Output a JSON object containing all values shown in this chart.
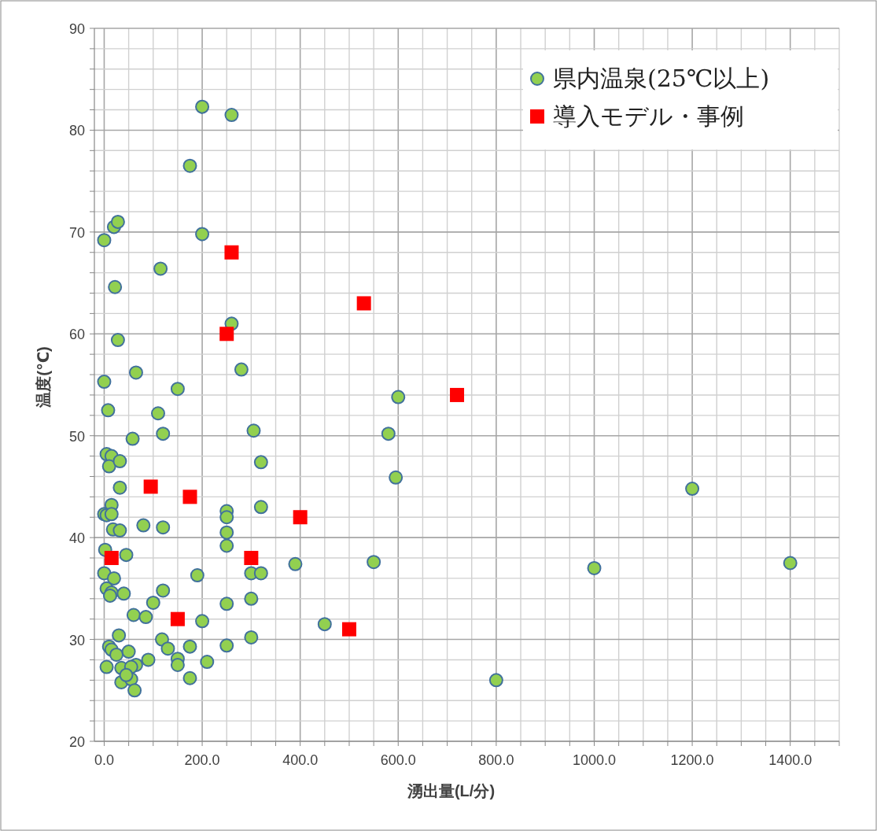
{
  "chart_data": {
    "type": "scatter",
    "xlabel": "湧出量(L/分)",
    "ylabel": "温度(℃)",
    "xlim": [
      -20,
      1500
    ],
    "xticks": [
      {
        "value": 0,
        "label": "0.0"
      },
      {
        "value": 50,
        "label": null
      },
      {
        "value": 100,
        "label": null
      },
      {
        "value": 150,
        "label": null
      },
      {
        "value": 200,
        "label": "200.0"
      },
      {
        "value": 250,
        "label": null
      },
      {
        "value": 300,
        "label": null
      },
      {
        "value": 350,
        "label": null
      },
      {
        "value": 400,
        "label": "400.0"
      },
      {
        "value": 450,
        "label": null
      },
      {
        "value": 500,
        "label": null
      },
      {
        "value": 550,
        "label": null
      },
      {
        "value": 600,
        "label": "600.0"
      },
      {
        "value": 650,
        "label": null
      },
      {
        "value": 700,
        "label": null
      },
      {
        "value": 750,
        "label": null
      },
      {
        "value": 800,
        "label": "800.0"
      },
      {
        "value": 850,
        "label": null
      },
      {
        "value": 900,
        "label": null
      },
      {
        "value": 950,
        "label": null
      },
      {
        "value": 1000,
        "label": "1000.0"
      },
      {
        "value": 1050,
        "label": null
      },
      {
        "value": 1100,
        "label": null
      },
      {
        "value": 1150,
        "label": null
      },
      {
        "value": 1200,
        "label": "1200.0"
      },
      {
        "value": 1250,
        "label": null
      },
      {
        "value": 1300,
        "label": null
      },
      {
        "value": 1350,
        "label": null
      },
      {
        "value": 1400,
        "label": "1400.0"
      },
      {
        "value": 1450,
        "label": null
      },
      {
        "value": 1500,
        "label": null
      }
    ],
    "ylim": [
      20,
      90
    ],
    "yticks": [
      20,
      {
        "value": 22,
        "label": null
      },
      {
        "value": 24,
        "label": null
      },
      {
        "value": 26,
        "label": null
      },
      {
        "value": 28,
        "label": null
      },
      30,
      {
        "value": 32,
        "label": null
      },
      {
        "value": 34,
        "label": null
      },
      {
        "value": 36,
        "label": null
      },
      {
        "value": 38,
        "label": null
      },
      40,
      {
        "value": 42,
        "label": null
      },
      {
        "value": 44,
        "label": null
      },
      {
        "value": 46,
        "label": null
      },
      {
        "value": 48,
        "label": null
      },
      50,
      {
        "value": 52,
        "label": null
      },
      {
        "value": 54,
        "label": null
      },
      {
        "value": 56,
        "label": null
      },
      {
        "value": 58,
        "label": null
      },
      60,
      {
        "value": 62,
        "label": null
      },
      {
        "value": 64,
        "label": null
      },
      {
        "value": 66,
        "label": null
      },
      {
        "value": 68,
        "label": null
      },
      70,
      {
        "value": 72,
        "label": null
      },
      {
        "value": 74,
        "label": null
      },
      {
        "value": 76,
        "label": null
      },
      {
        "value": 78,
        "label": null
      },
      80,
      {
        "value": 82,
        "label": null
      },
      {
        "value": 84,
        "label": null
      },
      {
        "value": 86,
        "label": null
      },
      {
        "value": 88,
        "label": null
      },
      90
    ],
    "grid": true,
    "legend": "top right",
    "series": [
      {
        "name": "県内温泉(25℃以上)",
        "color": "#92d050",
        "marker": "circle",
        "x": [
          0,
          20,
          28,
          22,
          28,
          115,
          200,
          200,
          260,
          175,
          260,
          280,
          65,
          0,
          8,
          150,
          110,
          120,
          58,
          305,
          600,
          580,
          595,
          5,
          15,
          10,
          32,
          320,
          32,
          1200,
          15,
          0,
          5,
          15,
          18,
          32,
          80,
          120,
          250,
          250,
          250,
          250,
          320,
          2,
          45,
          390,
          550,
          1000,
          1400,
          0,
          20,
          190,
          300,
          320,
          5,
          15,
          12,
          40,
          120,
          100,
          250,
          300,
          60,
          85,
          200,
          450,
          30,
          118,
          300,
          250,
          10,
          15,
          25,
          50,
          130,
          175,
          150,
          90,
          65,
          5,
          35,
          55,
          150,
          210,
          35,
          55,
          175,
          800,
          62,
          45
        ],
        "values": [
          69.2,
          70.5,
          71,
          64.6,
          59.4,
          66.4,
          69.8,
          82.3,
          81.5,
          76.5,
          61,
          56.5,
          56.2,
          55.3,
          52.5,
          54.6,
          52.2,
          50.2,
          49.7,
          50.5,
          53.8,
          50.2,
          45.9,
          48.2,
          48,
          47,
          47.5,
          47.4,
          44.9,
          44.8,
          43.2,
          42.3,
          42.2,
          42.3,
          40.8,
          40.7,
          41.2,
          41,
          42.6,
          42,
          40.5,
          39.2,
          43,
          38.8,
          38.3,
          37.4,
          37.6,
          37,
          37.5,
          36.5,
          36,
          36.3,
          36.5,
          36.5,
          35,
          34.6,
          34.3,
          34.5,
          34.8,
          33.6,
          33.5,
          34,
          32.4,
          32.2,
          31.8,
          31.5,
          30.4,
          30,
          30.2,
          29.4,
          29.3,
          29,
          28.5,
          28.8,
          29.1,
          29.3,
          28.1,
          28,
          27.5,
          27.3,
          27.2,
          27.3,
          27.5,
          27.8,
          25.8,
          26.1,
          26.2,
          26,
          25,
          26.5
        ]
      },
      {
        "name": "導入モデル・事例",
        "color": "#ff0000",
        "marker": "square",
        "x": [
          260,
          530,
          250,
          720,
          95,
          175,
          400,
          15,
          300,
          150,
          500
        ],
        "values": [
          68,
          63,
          60,
          54,
          45,
          44,
          42,
          38,
          38,
          32,
          31
        ]
      }
    ]
  }
}
